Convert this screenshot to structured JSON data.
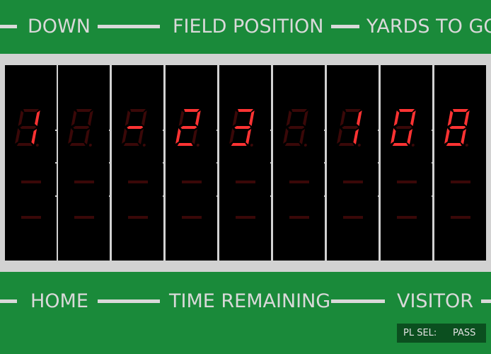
{
  "header": {
    "down_label": "DOWN",
    "field_position_label": "FIELD POSITION",
    "yards_to_go_label": "YARDS TO GO"
  },
  "footer": {
    "home_label": "HOME",
    "time_remaining_label": "TIME REMAINING",
    "visitor_label": "VISITOR"
  },
  "play_select": {
    "label": "PL SEL:",
    "value": "PASS"
  },
  "display": {
    "digits": [
      "1",
      "",
      "-",
      "2",
      "3",
      "",
      "1",
      "0",
      "8"
    ],
    "lit_color": "#ff3333",
    "dim_color": "#3a0808"
  }
}
